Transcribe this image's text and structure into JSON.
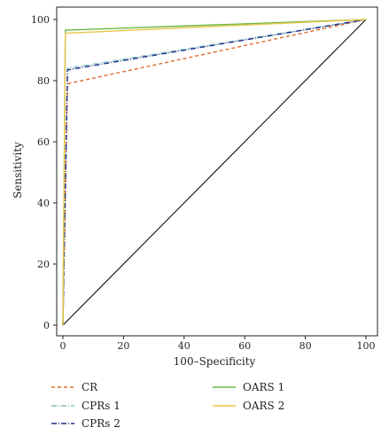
{
  "chart_data": {
    "type": "line",
    "title": "",
    "xlabel": "100–Specificity",
    "ylabel": "Sensitivity",
    "xlim": [
      0,
      100
    ],
    "ylim": [
      0,
      100
    ],
    "xticks": [
      0,
      20,
      40,
      60,
      80,
      100
    ],
    "yticks": [
      0,
      20,
      40,
      60,
      80,
      100
    ],
    "grid": false,
    "legend_position": "bottom",
    "reference_line": {
      "x": [
        0,
        100
      ],
      "y": [
        0,
        100
      ],
      "color": "#000000"
    },
    "series": [
      {
        "name": "CR",
        "color": "#e06a2c",
        "dash": "4 3",
        "x": [
          0,
          1.5,
          100
        ],
        "y": [
          0,
          79,
          100
        ]
      },
      {
        "name": "CPRs 1",
        "color": "#7fc6c0",
        "dash": "6 2 1 2",
        "x": [
          0,
          1.5,
          100
        ],
        "y": [
          0,
          84,
          100
        ]
      },
      {
        "name": "CPRs 2",
        "color": "#1f2d8a",
        "dash": "6 2 1 2",
        "x": [
          0,
          1.5,
          100
        ],
        "y": [
          0,
          83.5,
          100
        ]
      },
      {
        "name": "OARS 1",
        "color": "#6cb843",
        "dash": "",
        "x": [
          0,
          0.8,
          100
        ],
        "y": [
          0,
          96.5,
          100
        ]
      },
      {
        "name": "OARS 2",
        "color": "#e8c64a",
        "dash": "",
        "x": [
          0,
          0.8,
          100
        ],
        "y": [
          0,
          95.5,
          100
        ]
      }
    ]
  }
}
